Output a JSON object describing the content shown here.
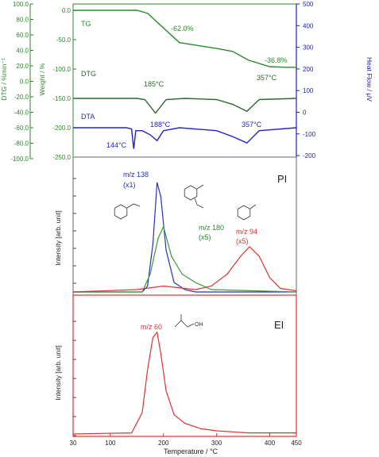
{
  "chart_data": [
    {
      "panel": "thermal",
      "type": "line",
      "yleft_outer": {
        "label": "DTG / %min⁻¹",
        "ticks": [
          "100.0",
          "80.0",
          "60.0",
          "40.0",
          "20.0",
          "0.0",
          "-20.0",
          "-40.0",
          "-60.0",
          "-80.0",
          "-100.0"
        ],
        "color": "#2a8a2a"
      },
      "yleft_inner": {
        "label": "Weight / %",
        "ticks": [
          "0.0",
          "-50.0",
          "-100.0",
          "-150.0",
          "-200.0",
          "-250.0"
        ],
        "color": "#2a8a2a"
      },
      "yright": {
        "label": "Heat Flow / μV",
        "ticks": [
          "500",
          "400",
          "300",
          "200",
          "100",
          "0",
          "-100",
          "-200"
        ],
        "color": "#2222aa"
      },
      "series": [
        {
          "name": "TG",
          "color": "#2a8a2a",
          "x": [
            30,
            150,
            170,
            200,
            230,
            300,
            330,
            360,
            400,
            430,
            450
          ],
          "y": [
            0,
            0,
            -5,
            -30,
            -55,
            -65,
            -70,
            -85,
            -96,
            -97,
            -97
          ]
        },
        {
          "name": "DTG",
          "color": "#2a6a2a",
          "x": [
            30,
            150,
            165,
            185,
            205,
            240,
            300,
            330,
            357,
            380,
            450
          ],
          "y": [
            -150,
            -150,
            -152,
            -175,
            -152,
            -150,
            -152,
            -160,
            -172,
            -152,
            -150
          ]
        },
        {
          "name": "DTA",
          "color": "#2222cc",
          "x": [
            30,
            130,
            140,
            144,
            148,
            160,
            175,
            188,
            200,
            230,
            300,
            330,
            357,
            380,
            450
          ],
          "y": [
            -200,
            -200,
            -202,
            -236,
            -205,
            -205,
            -212,
            -222,
            -205,
            -200,
            -205,
            -215,
            -226,
            -205,
            -200
          ]
        }
      ],
      "annotations": [
        "TG",
        "-62.0%",
        "-36.8%",
        "DTG",
        "185°C",
        "357°C",
        "DTA",
        "144°C",
        "188°C",
        "357°C"
      ]
    },
    {
      "panel": "PI",
      "type": "line",
      "title": "PI",
      "ylabel": "Intensity [arb. unit]",
      "series": [
        {
          "name": "m/z 138 (x1)",
          "color": "#2233bb",
          "x": [
            30,
            160,
            170,
            180,
            188,
            195,
            205,
            220,
            240,
            260,
            450
          ],
          "y": [
            0,
            0,
            0.05,
            0.4,
            0.92,
            0.8,
            0.35,
            0.08,
            0.02,
            0,
            0
          ]
        },
        {
          "name": "m/z 180 (x5)",
          "color": "#3a9a3a",
          "x": [
            30,
            160,
            175,
            190,
            200,
            215,
            235,
            260,
            290,
            450
          ],
          "y": [
            0,
            0,
            0.15,
            0.45,
            0.55,
            0.3,
            0.15,
            0.08,
            0.02,
            0
          ]
        },
        {
          "name": "m/z 94 (x5)",
          "color": "#e03030",
          "x": [
            30,
            150,
            200,
            260,
            290,
            320,
            345,
            362,
            380,
            400,
            420,
            450
          ],
          "y": [
            0,
            0.02,
            0.05,
            0.02,
            0.05,
            0.15,
            0.3,
            0.38,
            0.3,
            0.12,
            0.03,
            0.01
          ]
        }
      ],
      "annotations": [
        "m/z 138",
        "(x1)",
        "m/z 180",
        "(x5)",
        "m/z 94",
        "(x5)"
      ]
    },
    {
      "panel": "EI",
      "type": "line",
      "title": "EI",
      "ylabel": "Intensity [arb. unit]",
      "xlabel": "Temperature / °C",
      "xticks": [
        "30",
        "100",
        "200",
        "300",
        "400",
        "450"
      ],
      "series": [
        {
          "name": "m/z 60",
          "color": "#e03030",
          "x": [
            30,
            140,
            160,
            170,
            180,
            188,
            195,
            205,
            220,
            240,
            270,
            300,
            330,
            360,
            450
          ],
          "y": [
            0,
            0.01,
            0.2,
            0.6,
            0.9,
            0.95,
            0.75,
            0.4,
            0.18,
            0.1,
            0.05,
            0.03,
            0.02,
            0.01,
            0.01
          ]
        }
      ],
      "annotations": [
        "m/z 60"
      ]
    }
  ]
}
